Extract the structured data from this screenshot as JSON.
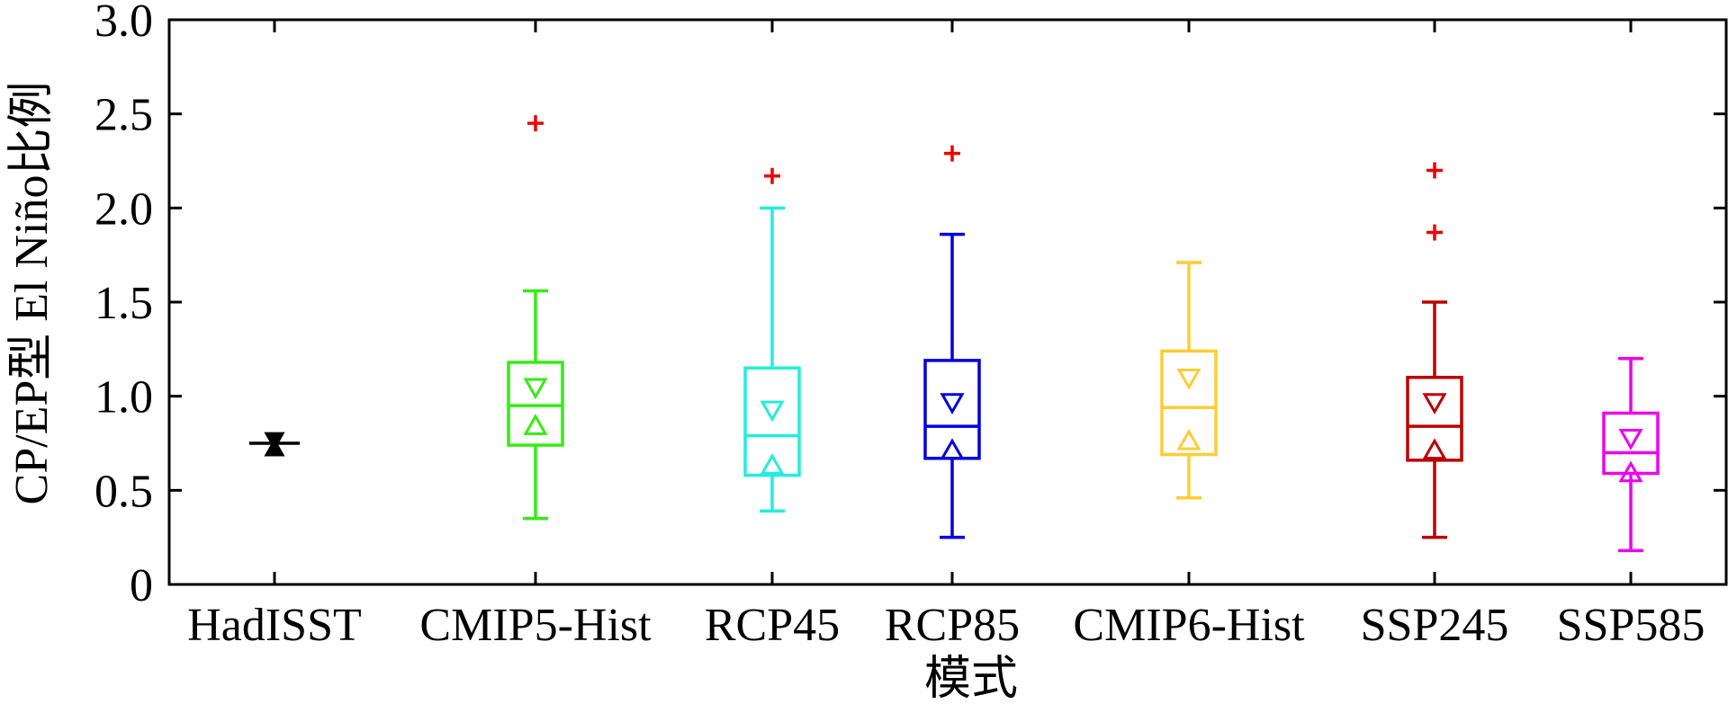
{
  "chart_data": {
    "type": "box",
    "xlabel": "模式",
    "ylabel": "CP/EP型 El Niño比例",
    "ylim": [
      0,
      3.0
    ],
    "yticks": [
      0,
      0.5,
      1.0,
      1.5,
      2.0,
      2.5,
      3.0
    ],
    "ytick_labels": [
      "0",
      "0.5",
      "1.0",
      "1.5",
      "2.0",
      "2.5",
      "3.0"
    ],
    "grid": false,
    "categories": [
      "HadISST",
      "CMIP5-Hist",
      "RCP45",
      "RCP85",
      "CMIP6-Hist",
      "SSP245",
      "SSP585"
    ],
    "boxes": [
      {
        "category": "HadISST",
        "color": "#000000",
        "q1": 0.75,
        "median": 0.75,
        "q3": 0.75,
        "whisker_low": 0.75,
        "whisker_high": 0.75,
        "mean_up": 0.72,
        "mean_down": 0.77,
        "outliers": []
      },
      {
        "category": "CMIP5-Hist",
        "color": "#33ee11",
        "q1": 0.74,
        "median": 0.95,
        "q3": 1.18,
        "whisker_low": 0.35,
        "whisker_high": 1.56,
        "mean_up": 0.84,
        "mean_down": 1.05,
        "outliers": [
          2.45
        ]
      },
      {
        "category": "RCP45",
        "color": "#22eedd",
        "q1": 0.58,
        "median": 0.79,
        "q3": 1.15,
        "whisker_low": 0.39,
        "whisker_high": 2.0,
        "mean_up": 0.63,
        "mean_down": 0.93,
        "outliers": [
          2.17
        ]
      },
      {
        "category": "RCP85",
        "color": "#0000dd",
        "q1": 0.67,
        "median": 0.84,
        "q3": 1.19,
        "whisker_low": 0.25,
        "whisker_high": 1.86,
        "mean_up": 0.71,
        "mean_down": 0.97,
        "outliers": [
          2.29
        ]
      },
      {
        "category": "CMIP6-Hist",
        "color": "#ffcc33",
        "q1": 0.69,
        "median": 0.94,
        "q3": 1.24,
        "whisker_low": 0.46,
        "whisker_high": 1.71,
        "mean_up": 0.76,
        "mean_down": 1.1,
        "outliers": []
      },
      {
        "category": "SSP245",
        "color": "#bb0000",
        "q1": 0.66,
        "median": 0.84,
        "q3": 1.1,
        "whisker_low": 0.25,
        "whisker_high": 1.5,
        "mean_up": 0.71,
        "mean_down": 0.97,
        "outliers": [
          2.2,
          1.87
        ]
      },
      {
        "category": "SSP585",
        "color": "#ee00ee",
        "q1": 0.59,
        "median": 0.7,
        "q3": 0.91,
        "whisker_low": 0.18,
        "whisker_high": 1.2,
        "mean_up": 0.59,
        "mean_down": 0.78,
        "outliers": []
      }
    ],
    "outlier_marker": "+",
    "outlier_color": "#ee0000"
  }
}
